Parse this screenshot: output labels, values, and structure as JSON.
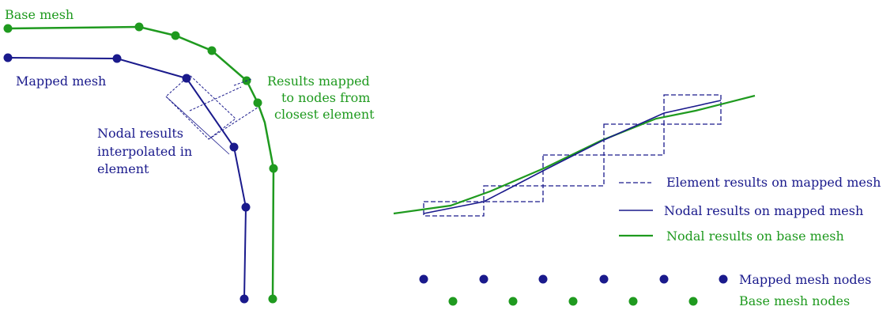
{
  "labels": {
    "base_mesh": "Base mesh",
    "mapped_mesh": "Mapped mesh",
    "results_mapped": [
      "Results mapped",
      "to nodes from",
      "closest element"
    ],
    "nodal_interp": [
      "Nodal results",
      "interpolated in",
      "element"
    ]
  },
  "legend": {
    "element_results": "Element results on mapped mesh",
    "nodal_mapped": "Nodal results on mapped mesh",
    "nodal_base": "Nodal results on base mesh",
    "mapped_nodes": "Mapped mesh nodes",
    "base_nodes": "Base mesh nodes"
  },
  "colors": {
    "green": "#1f9a1f",
    "blue": "#1a1a8c",
    "text_green": "#1f9a1f",
    "text_blue": "#1a1a8c"
  }
}
